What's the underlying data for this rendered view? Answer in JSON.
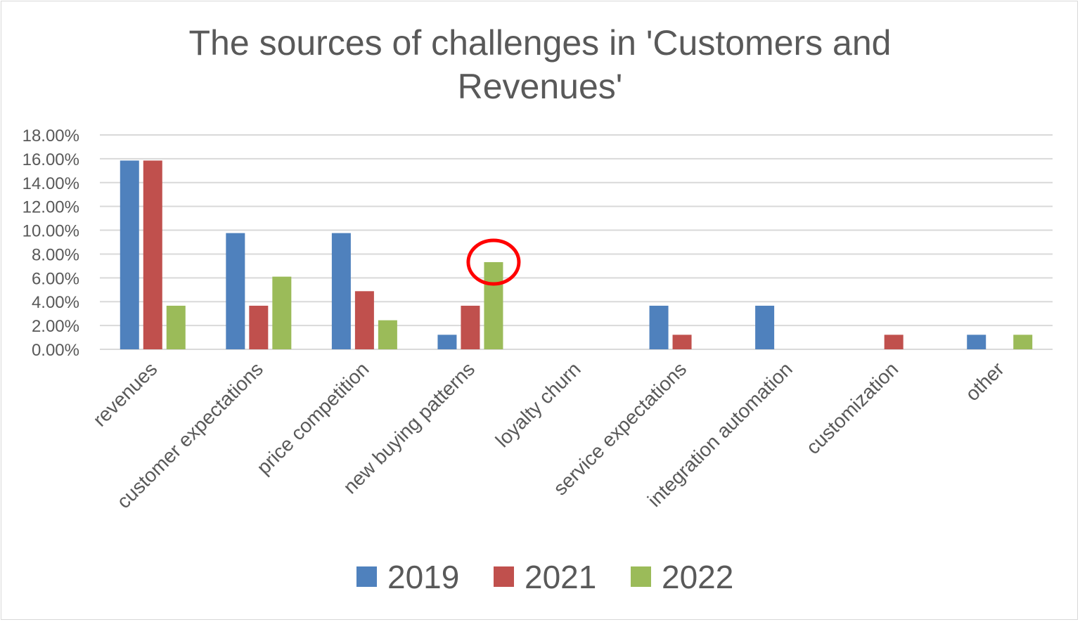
{
  "chart_data": {
    "type": "bar",
    "title": "The sources of challenges in 'Customers and Revenues'",
    "title_lines": [
      "The sources of challenges in 'Customers and",
      "Revenues'"
    ],
    "categories": [
      "revenues",
      "customer expectations",
      "price competition",
      "new buying patterns",
      "loyalty churn",
      "service expectations",
      "integration automation",
      "customization",
      "other"
    ],
    "series": [
      {
        "name": "2019",
        "color": "#4f81bd",
        "values": [
          15.85,
          9.76,
          9.76,
          1.22,
          0,
          3.66,
          3.66,
          0,
          1.22
        ]
      },
      {
        "name": "2021",
        "color": "#c0504d",
        "values": [
          15.85,
          3.66,
          4.88,
          3.66,
          0,
          1.22,
          0,
          1.22,
          0
        ]
      },
      {
        "name": "2022",
        "color": "#9bbb59",
        "values": [
          3.66,
          6.1,
          2.44,
          7.32,
          0,
          0,
          0,
          0,
          1.22
        ]
      }
    ],
    "ylim": [
      0,
      18
    ],
    "yticks": [
      "0.00%",
      "2.00%",
      "4.00%",
      "6.00%",
      "8.00%",
      "10.00%",
      "12.00%",
      "14.00%",
      "16.00%",
      "18.00%"
    ],
    "grid": true,
    "legend_position": "bottom",
    "annotation": {
      "type": "red circle",
      "category": "new buying patterns",
      "series": "2022",
      "color": "#ff0000"
    }
  }
}
